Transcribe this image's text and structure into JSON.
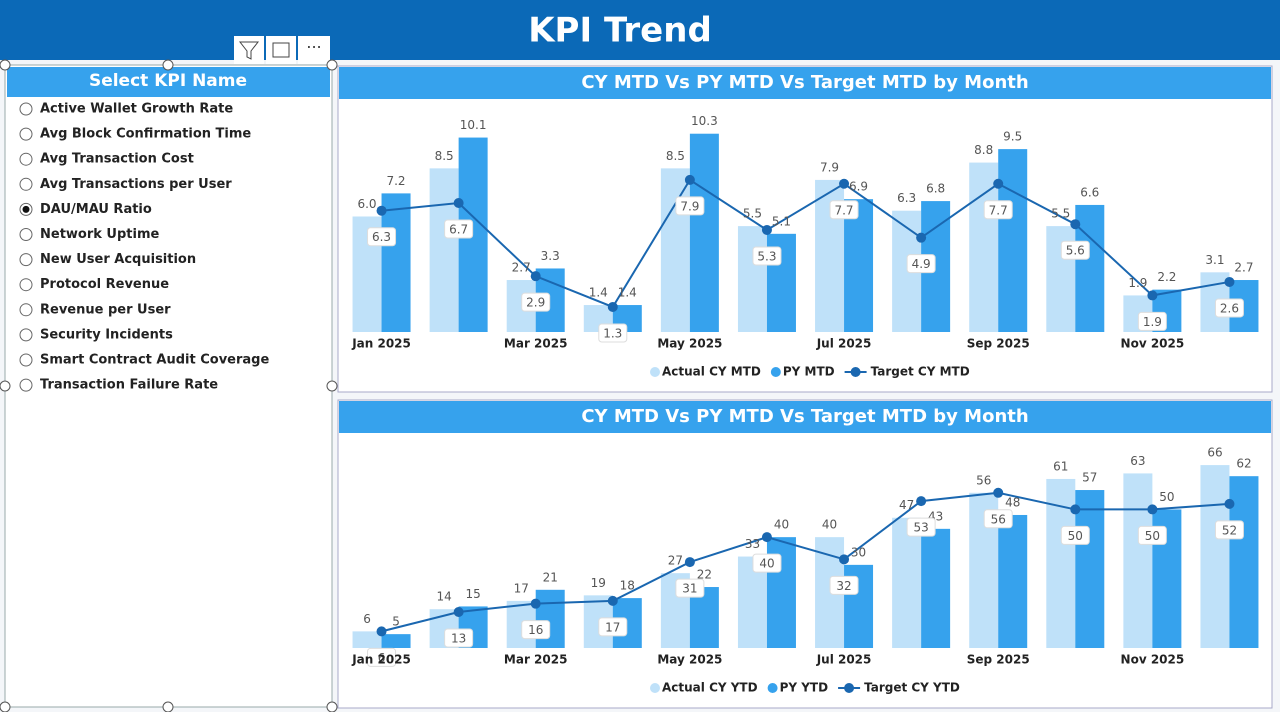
{
  "header": {
    "title": "KPI Trend"
  },
  "slicer": {
    "title": "Select KPI Name",
    "selected": 4,
    "items": [
      "Active Wallet Growth Rate",
      "Avg Block Confirmation Time",
      "Avg Transaction Cost",
      "Avg Transactions per User",
      "DAU/MAU Ratio",
      "Network Uptime",
      "New User Acquisition",
      "Protocol Revenue",
      "Revenue per User",
      "Security Incidents",
      "Smart Contract Audit Coverage",
      "Transaction Failure Rate"
    ]
  },
  "chart_data": [
    {
      "type": "bar-line",
      "title": "CY MTD Vs PY MTD Vs Target MTD by Month",
      "categories": [
        "Jan 2025",
        null,
        "Mar 2025",
        null,
        "May 2025",
        null,
        "Jul 2025",
        null,
        "Sep 2025",
        null,
        "Nov 2025",
        null
      ],
      "series": [
        {
          "name": "Actual CY MTD",
          "color": "#bfe1f9",
          "kind": "bar",
          "values": [
            6,
            8.5,
            2.7,
            1.4,
            8.5,
            5.5,
            7.9,
            6.3,
            8.8,
            5.5,
            1.9,
            3.1
          ],
          "value_labels": [
            "6.0",
            "8.5",
            "2.7",
            "1.4",
            "8.5",
            "5.5",
            "7.9",
            "6.3",
            "8.8",
            "5.5",
            "1.9",
            "3.1"
          ]
        },
        {
          "name": "PY MTD",
          "color": "#36a2ed",
          "kind": "bar",
          "values": [
            7.2,
            10.1,
            3.3,
            1.4,
            10.3,
            5.1,
            6.9,
            6.8,
            9.5,
            6.6,
            2.2,
            2.7
          ]
        },
        {
          "name": "Target CY MTD",
          "color": "#1a67b0",
          "kind": "line",
          "values": [
            6.3,
            6.7,
            2.9,
            1.3,
            7.9,
            5.3,
            7.7,
            4.9,
            7.7,
            5.6,
            1.9,
            2.6
          ]
        }
      ]
    },
    {
      "type": "bar-line",
      "title": "CY MTD Vs PY MTD Vs Target MTD by Month",
      "categories": [
        "Jan 2025",
        null,
        "Mar 2025",
        null,
        "May 2025",
        null,
        "Jul 2025",
        null,
        "Sep 2025",
        null,
        "Nov 2025",
        null
      ],
      "series": [
        {
          "name": "Actual CY YTD",
          "color": "#bfe1f9",
          "kind": "bar",
          "values": [
            6,
            14,
            17,
            19,
            27,
            33,
            40,
            47,
            56,
            61,
            63,
            66
          ]
        },
        {
          "name": "PY YTD",
          "color": "#36a2ed",
          "kind": "bar",
          "values": [
            5,
            15,
            21,
            18,
            22,
            40,
            30,
            43,
            48,
            57,
            50,
            62
          ]
        },
        {
          "name": "Target CY YTD",
          "color": "#1a67b0",
          "kind": "line",
          "values": [
            6,
            13,
            16,
            17,
            31,
            40,
            32,
            53,
            56,
            50,
            50,
            52
          ]
        }
      ]
    }
  ]
}
